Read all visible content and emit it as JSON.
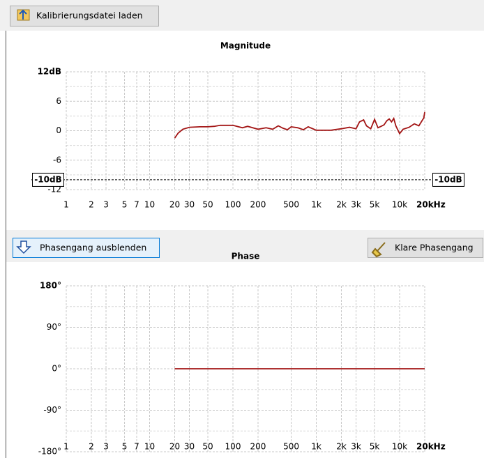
{
  "buttons": {
    "load": "Kalibrierungsdatei laden",
    "hide_phase": "Phasengang ausblenden",
    "clear_phase": "Klare Phasengang"
  },
  "chart_data": [
    {
      "type": "line",
      "title": "Magnitude",
      "log_x": true,
      "grid": true,
      "xlim": [
        1,
        20000
      ],
      "xticks": [
        1,
        2,
        3,
        5,
        7,
        10,
        20,
        30,
        50,
        100,
        200,
        500,
        {
          "value": 1000,
          "label": "1k"
        },
        {
          "value": 2000,
          "label": "2k"
        },
        {
          "value": 3000,
          "label": "3k"
        },
        {
          "value": 5000,
          "label": "5k"
        },
        {
          "value": 10000,
          "label": "10k"
        },
        {
          "value": 20000,
          "label": "20kHz"
        }
      ],
      "ylim": [
        -12,
        12
      ],
      "yticks": [
        {
          "value": 12,
          "label": "12dB"
        },
        6,
        0,
        -6,
        -12
      ],
      "reference_line": {
        "value": -10,
        "label": "-10dB"
      },
      "series": [
        {
          "color": "#a31515",
          "x": [
            20,
            22,
            25,
            30,
            40,
            50,
            60,
            70,
            100,
            130,
            150,
            200,
            250,
            300,
            350,
            400,
            450,
            500,
            600,
            700,
            800,
            1000,
            1500,
            2000,
            2500,
            3000,
            3300,
            3700,
            4000,
            4500,
            5000,
            5500,
            6000,
            6500,
            7000,
            7500,
            8000,
            8500,
            9000,
            10000,
            11000,
            13000,
            15000,
            17000,
            18500,
            19500,
            20000
          ],
          "values": [
            -1.5,
            -0.5,
            0.3,
            0.7,
            0.8,
            0.8,
            0.9,
            1.1,
            1.1,
            0.6,
            0.9,
            0.3,
            0.6,
            0.3,
            1.0,
            0.5,
            0.2,
            0.8,
            0.6,
            0.2,
            0.8,
            0.1,
            0.1,
            0.4,
            0.7,
            0.4,
            1.8,
            2.2,
            1.0,
            0.4,
            2.3,
            0.6,
            0.9,
            1.2,
            2.0,
            2.4,
            1.8,
            2.5,
            1.0,
            -0.6,
            0.3,
            0.7,
            1.4,
            1.0,
            2.0,
            2.6,
            3.8
          ]
        }
      ]
    },
    {
      "type": "line",
      "title": "Phase",
      "log_x": true,
      "grid": true,
      "xlim": [
        1,
        20000
      ],
      "xticks": [
        1,
        2,
        3,
        5,
        7,
        10,
        20,
        30,
        50,
        100,
        200,
        500,
        {
          "value": 1000,
          "label": "1k"
        },
        {
          "value": 2000,
          "label": "2k"
        },
        {
          "value": 3000,
          "label": "3k"
        },
        {
          "value": 5000,
          "label": "5k"
        },
        {
          "value": 10000,
          "label": "10k"
        },
        {
          "value": 20000,
          "label": "20kHz"
        }
      ],
      "ylim": [
        -180,
        180
      ],
      "yticks": [
        {
          "value": 180,
          "label": "180°"
        },
        {
          "value": 90,
          "label": "90°"
        },
        {
          "value": 0,
          "label": "0°"
        },
        {
          "value": -90,
          "label": "-90°"
        },
        {
          "value": -180,
          "label": "-180°"
        }
      ],
      "series": [
        {
          "color": "#a31515",
          "x": [
            20,
            20000
          ],
          "values": [
            0,
            0
          ]
        }
      ]
    }
  ]
}
